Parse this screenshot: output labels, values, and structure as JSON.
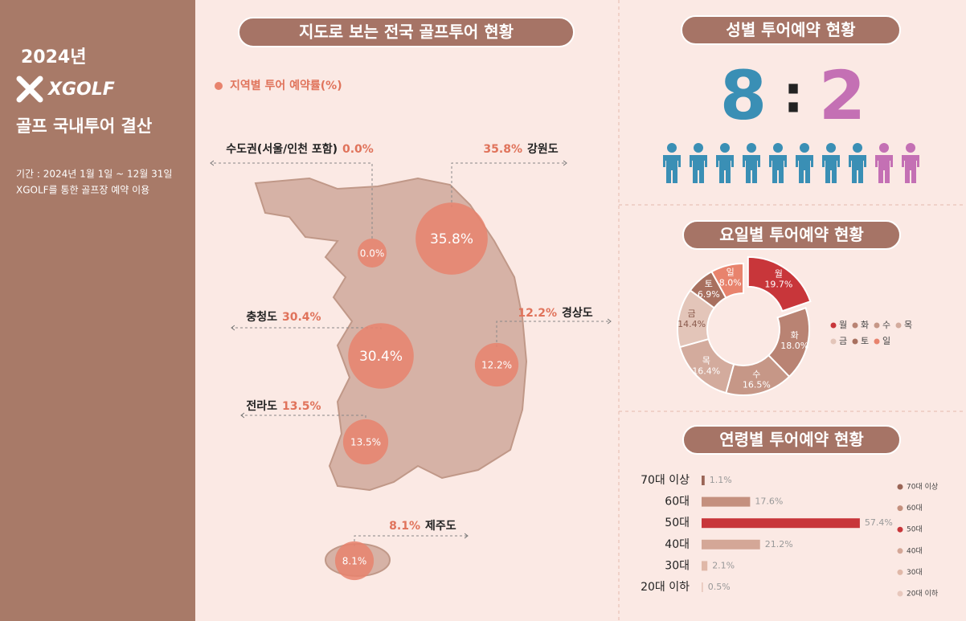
{
  "sidebar": {
    "year": "2024년",
    "logo": "XGOLF",
    "title": "골프 국내투어 결산",
    "period": "기간 : 2024년 1월 1일 ~ 12월 31일",
    "note": "XGOLF를 통한 골프장 예약 이용"
  },
  "chart_data": [
    {
      "type": "bubble-map",
      "title": "지도로 보는 전국 골프투어 현황",
      "legend": "지역별 투어 예약률(%)",
      "categories": [
        "수도권(서울/인천 포함)",
        "강원도",
        "충청도",
        "경상도",
        "전라도",
        "제주도"
      ],
      "values": [
        0.0,
        35.8,
        30.4,
        12.2,
        13.5,
        8.1
      ],
      "value_labels": [
        "0.0%",
        "35.8%",
        "30.4%",
        "12.2%",
        "13.5%",
        "8.1%"
      ],
      "color": "#e8836d"
    },
    {
      "type": "pictogram",
      "title": "성별 투어예약 현황",
      "values": [
        8,
        2
      ],
      "colors": [
        "#3a8fb5",
        "#c470b4"
      ]
    },
    {
      "type": "pie",
      "title": "요일별 투어예약 현황",
      "categories": [
        "월",
        "화",
        "수",
        "목",
        "금",
        "토",
        "일"
      ],
      "values": [
        19.7,
        18.0,
        16.5,
        16.4,
        14.4,
        6.9,
        8.0
      ],
      "value_labels": [
        "19.7%",
        "18.0%",
        "16.5%",
        "16.4%",
        "14.4%",
        "6.9%",
        "8.0%"
      ],
      "colors": [
        "#c8363a",
        "#b98373",
        "#c69787",
        "#d3ab9d",
        "#e3c5b9",
        "#a8705f",
        "#e8836d"
      ]
    },
    {
      "type": "bar",
      "orientation": "horizontal",
      "title": "연령별 투어예약 현황",
      "categories": [
        "70대 이상",
        "60대",
        "50대",
        "40대",
        "30대",
        "20대 이하"
      ],
      "values": [
        1.1,
        17.6,
        57.4,
        21.2,
        2.1,
        0.5
      ],
      "value_labels": [
        "1.1%",
        "17.6%",
        "57.4%",
        "21.2%",
        "2.1%",
        "0.5%"
      ],
      "colors": [
        "#9a6556",
        "#c4907e",
        "#c8363a",
        "#d4a797",
        "#e0b8a8",
        "#e8c8bd"
      ]
    }
  ]
}
